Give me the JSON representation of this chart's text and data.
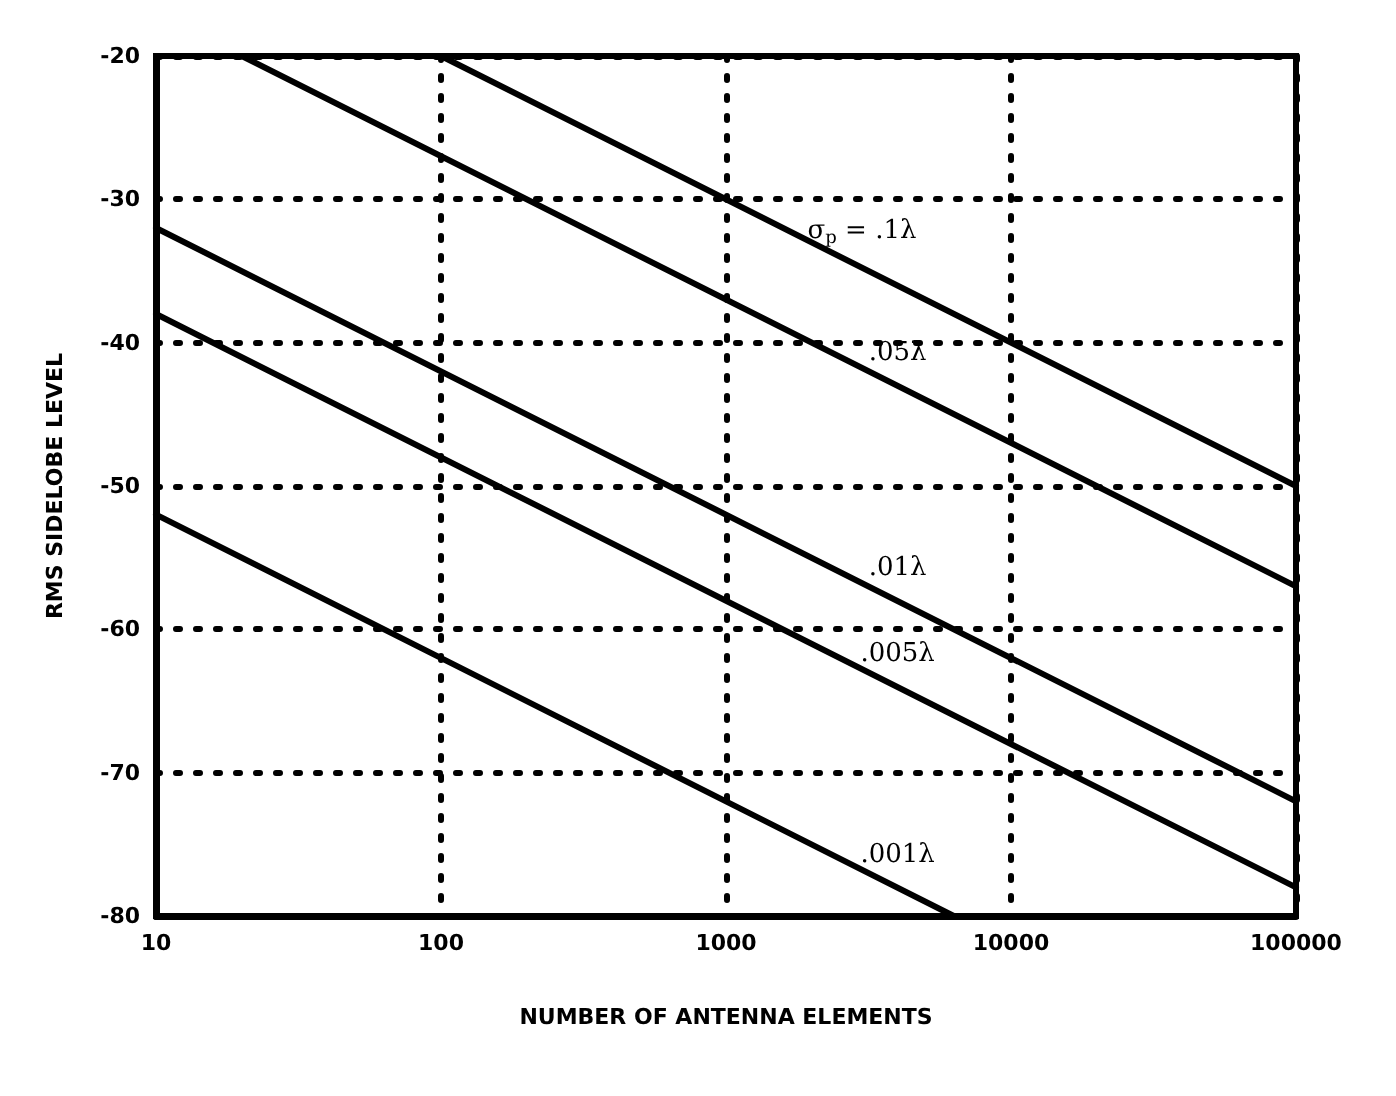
{
  "chart_data": {
    "type": "line",
    "xlabel": "NUMBER OF ANTENNA ELEMENTS",
    "ylabel": "RMS SIDELOBE LEVEL",
    "log": "x",
    "xlim": [
      10,
      100000
    ],
    "xticks": [
      10,
      100,
      1000,
      10000,
      100000
    ],
    "ylim": [
      -80,
      -20
    ],
    "yticks": [
      -80,
      -70,
      -60,
      -50,
      -40,
      -30,
      -20
    ],
    "grid": true,
    "marker": "none",
    "line_style": "solid",
    "series": [
      {
        "name": "σ$_{p}$ = .1λ",
        "color": "#000000",
        "x": [
          100,
          100000
        ],
        "values": [
          -20,
          -50
        ]
      },
      {
        "name": ".05λ",
        "color": "#000000",
        "x": [
          20,
          100000
        ],
        "values": [
          -20,
          -57
        ]
      },
      {
        "name": ".01λ",
        "color": "#000000",
        "x": [
          10,
          100000
        ],
        "values": [
          -32,
          -72
        ]
      },
      {
        "name": ".005λ",
        "color": "#000000",
        "x": [
          10,
          100000
        ],
        "values": [
          -38,
          -78
        ]
      },
      {
        "name": ".001λ",
        "color": "#000000",
        "x": [
          10,
          6300
        ],
        "values": [
          -52,
          -80
        ]
      }
    ]
  }
}
